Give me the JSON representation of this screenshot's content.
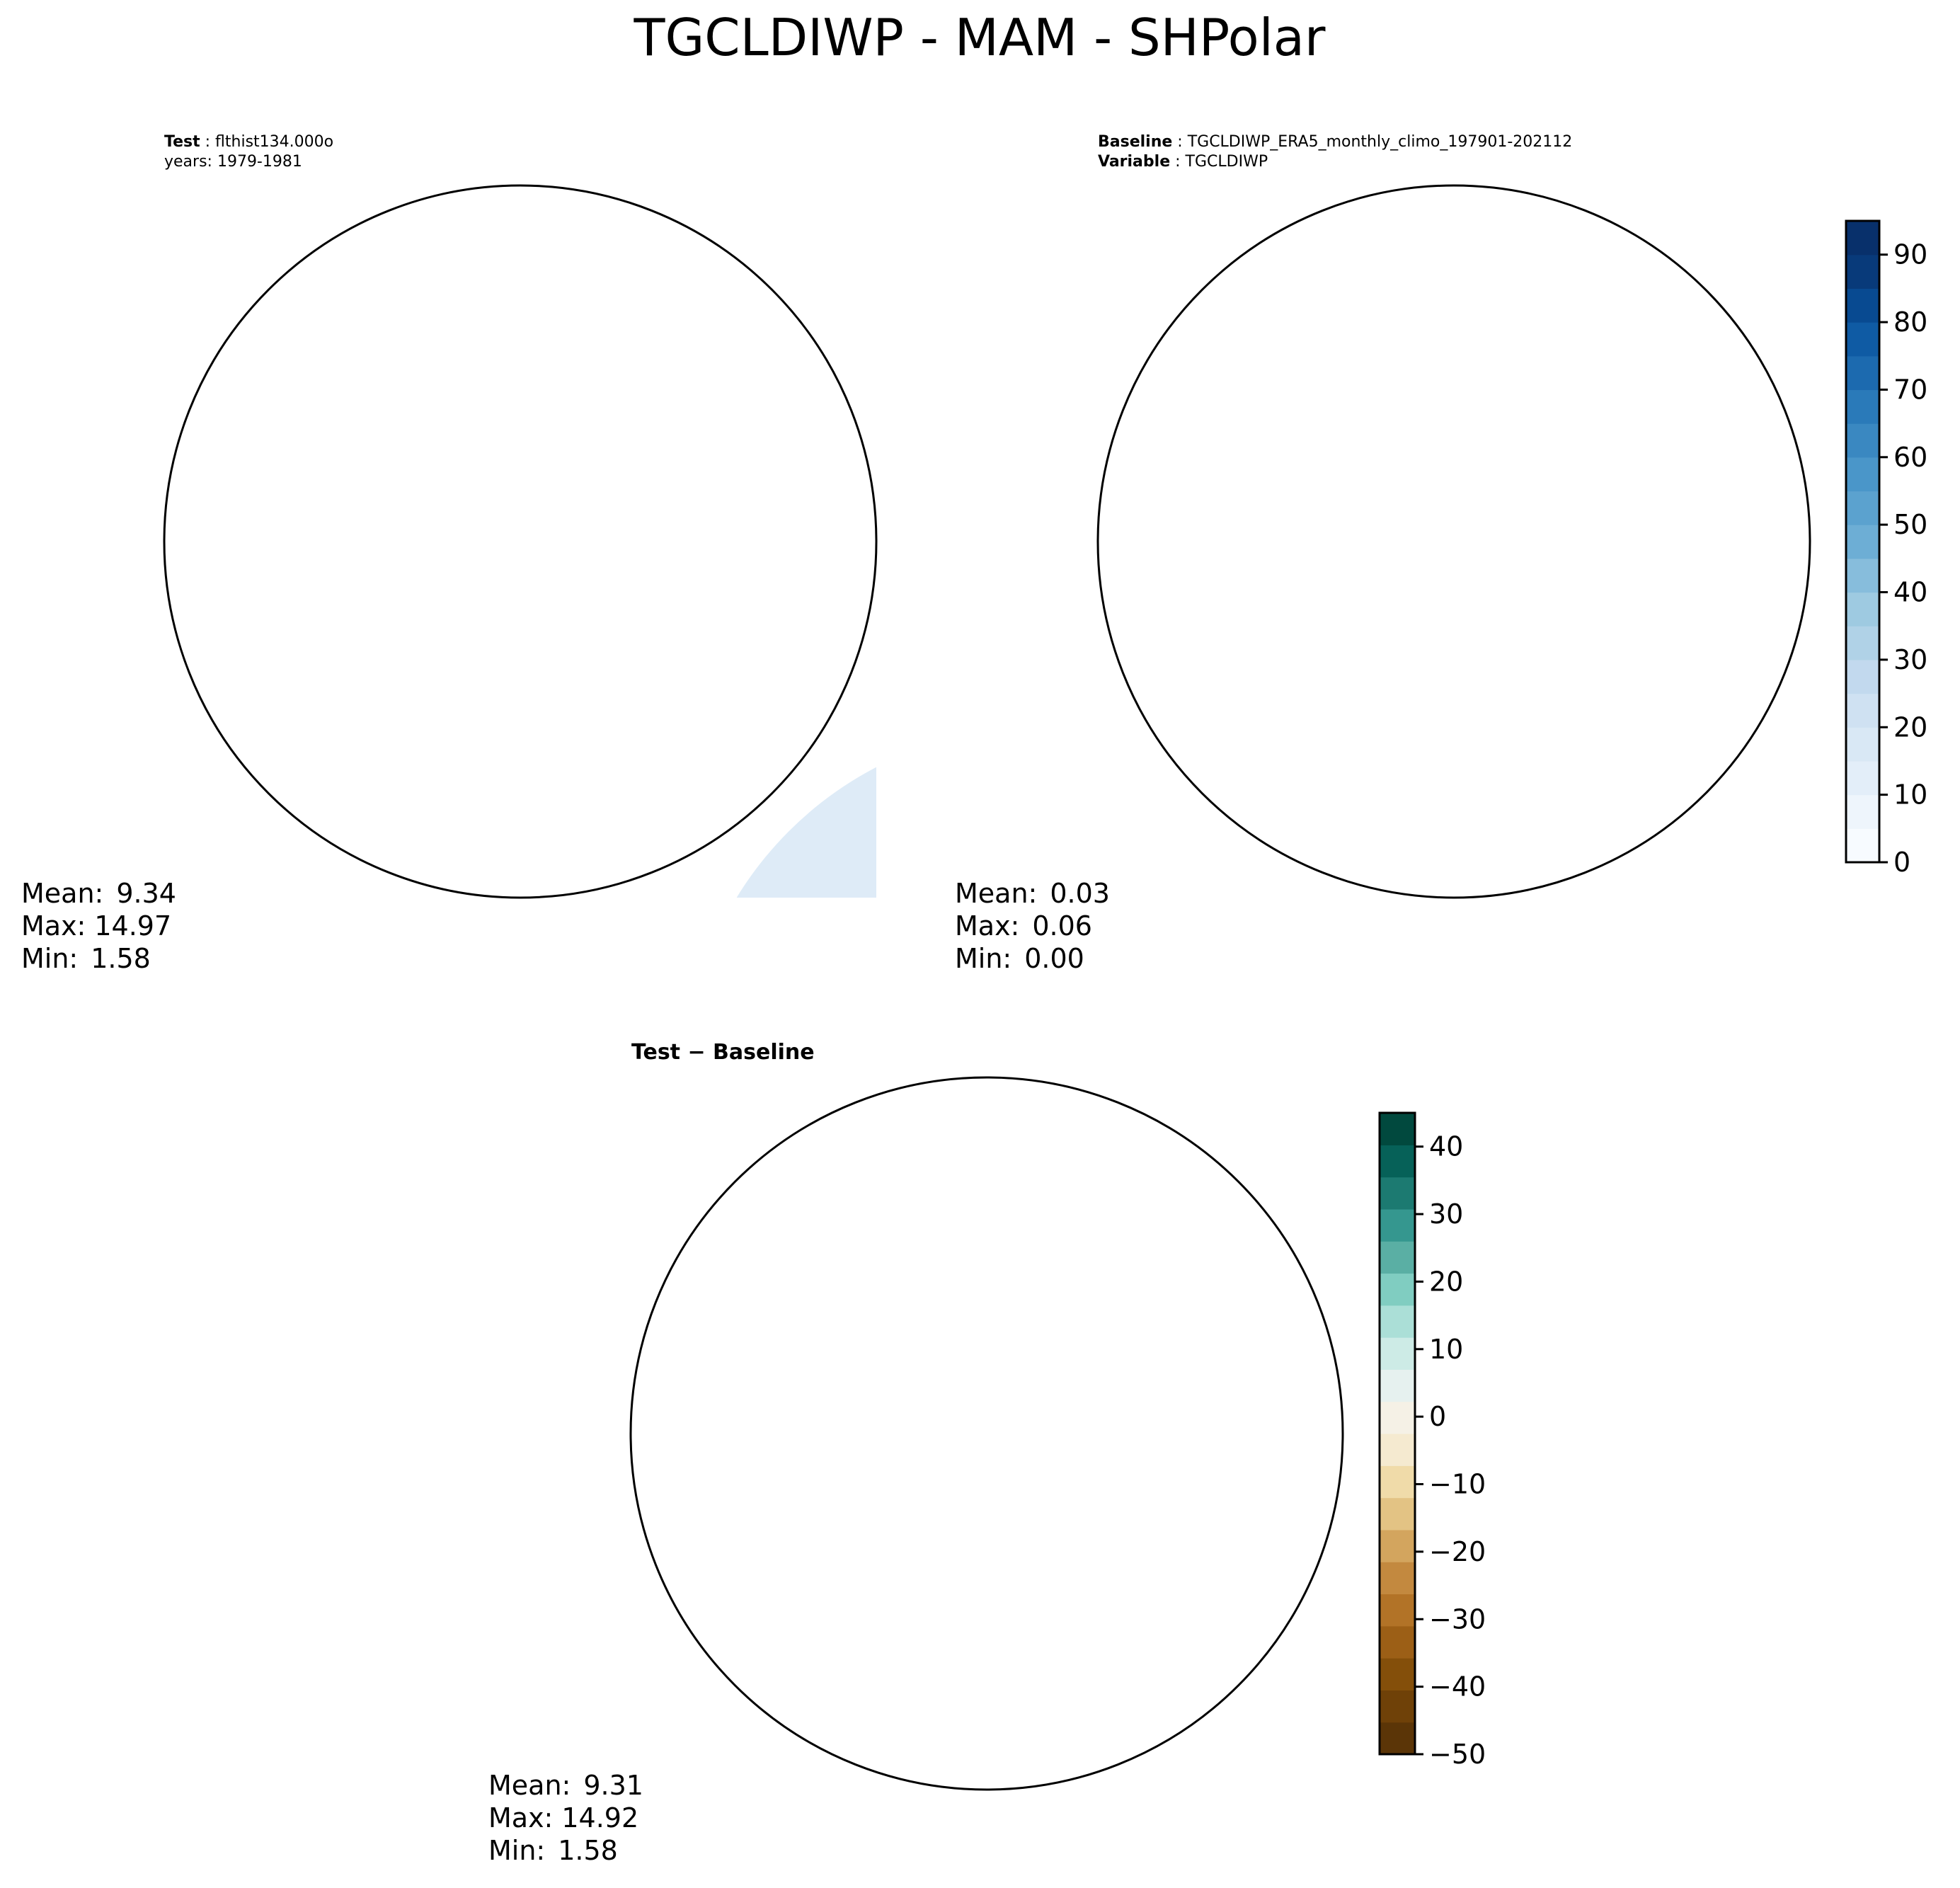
{
  "figure": {
    "title": "TGCLDIWP - MAM - SHPolar"
  },
  "colors": {
    "blues_background": "#f2f7fd",
    "diff_neutral": "#e6f1ef",
    "continent_outline": "#000000"
  },
  "chart_data": [
    {
      "type": "heatmap",
      "panel": "test",
      "header": [
        {
          "key": "Test",
          "value": "flthist134.000o"
        },
        {
          "key": "",
          "value": "years: 1979-1981"
        }
      ],
      "stats": [
        {
          "label": "Mean:",
          "value": "9.34"
        },
        {
          "label": "Max:",
          "value": "14.97"
        },
        {
          "label": "Min:",
          "value": "1.58"
        }
      ],
      "colormap": "Blues",
      "vmin": 0,
      "vmax": 95
    },
    {
      "type": "heatmap",
      "panel": "baseline",
      "header": [
        {
          "key": "Baseline",
          "value": "TGCLDIWP_ERA5_monthly_climo_197901-202112"
        },
        {
          "key": "Variable",
          "value": "TGCLDIWP"
        }
      ],
      "stats": [
        {
          "label": "Mean:",
          "value": "0.03"
        },
        {
          "label": "Max:",
          "value": "0.06"
        },
        {
          "label": "Min:",
          "value": "0.00"
        }
      ],
      "colormap": "Blues",
      "vmin": 0,
      "vmax": 95,
      "colorbar": {
        "min": 0,
        "max": 95,
        "ticks": [
          0,
          10,
          20,
          30,
          40,
          50,
          60,
          70,
          80,
          90
        ],
        "tick_labels": [
          "0",
          "10",
          "20",
          "30",
          "40",
          "50",
          "60",
          "70",
          "80",
          "90"
        ],
        "colors": [
          "#f7fbff",
          "#eef5fc",
          "#e3eef9",
          "#d9e8f5",
          "#cfe1f2",
          "#c2d9ee",
          "#b0d2e7",
          "#9ecae1",
          "#87bddc",
          "#6daed5",
          "#5ba2cf",
          "#4a96c9",
          "#3a88c1",
          "#2a7ab9",
          "#1c6aaf",
          "#0f5ba4",
          "#084a91",
          "#083a7a",
          "#08306b"
        ]
      }
    },
    {
      "type": "heatmap",
      "panel": "difference",
      "title": "Test − Baseline",
      "stats": [
        {
          "label": "Mean:",
          "value": "9.31"
        },
        {
          "label": "Max:",
          "value": "14.92"
        },
        {
          "label": "Min:",
          "value": "1.58"
        }
      ],
      "colormap": "BrBG",
      "vmin": -50,
      "vmax": 45,
      "colorbar": {
        "min": -50,
        "max": 45,
        "ticks": [
          -50,
          -40,
          -30,
          -20,
          -10,
          0,
          10,
          20,
          30,
          40
        ],
        "tick_labels": [
          "−50",
          "−40",
          "−30",
          "−20",
          "−10",
          "0",
          "10",
          "20",
          "30",
          "40"
        ],
        "colors": [
          "#5b3507",
          "#6f4108",
          "#844f0a",
          "#9c5f16",
          "#b27327",
          "#c3893f",
          "#d3a55e",
          "#e3c384",
          "#f0dba9",
          "#f5ead0",
          "#f5f1e6",
          "#e6f1ef",
          "#cdebe6",
          "#abdfd7",
          "#80cdc1",
          "#5aafa4",
          "#35978f",
          "#1c7a71",
          "#066158",
          "#01493e"
        ]
      }
    }
  ]
}
